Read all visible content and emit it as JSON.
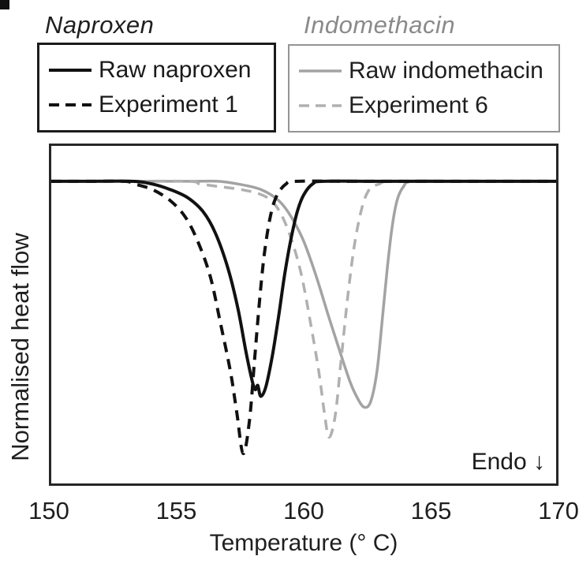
{
  "figure": {
    "group_titles": [
      {
        "label": "Naproxen",
        "color": "#1f1f1f"
      },
      {
        "label": "Indomethacin",
        "color": "#8a8a8a"
      }
    ]
  },
  "chart_data": {
    "type": "line",
    "title": "",
    "xlabel": "Temperature (° C)",
    "ylabel": "Normalised heat flow",
    "annotation": "Endo ↓",
    "xlim": [
      150,
      170
    ],
    "ylim": [
      -1.11,
      0.13
    ],
    "x_ticks": [
      150,
      155,
      160,
      165,
      170
    ],
    "y_ticks": [],
    "grid": false,
    "legend_position": "above-plot, two boxes",
    "baseline_value": 0,
    "series": [
      {
        "name": "Raw indomethacin",
        "group": "Indomethacin",
        "color": "#a3a3a3",
        "style": "solid",
        "width": 3.5,
        "points": [
          [
            150,
            0
          ],
          [
            153,
            0
          ],
          [
            155.5,
            0
          ],
          [
            156.6,
            0
          ],
          [
            157.4,
            -0.01
          ],
          [
            158.3,
            -0.03
          ],
          [
            159.0,
            -0.07
          ],
          [
            159.5,
            -0.13
          ],
          [
            160.0,
            -0.22
          ],
          [
            160.5,
            -0.35
          ],
          [
            161.0,
            -0.5
          ],
          [
            161.45,
            -0.63
          ],
          [
            161.85,
            -0.74
          ],
          [
            162.15,
            -0.8
          ],
          [
            162.4,
            -0.83
          ],
          [
            162.65,
            -0.81
          ],
          [
            162.9,
            -0.7
          ],
          [
            163.1,
            -0.52
          ],
          [
            163.3,
            -0.33
          ],
          [
            163.5,
            -0.17
          ],
          [
            163.7,
            -0.07
          ],
          [
            163.95,
            -0.02
          ],
          [
            164.3,
            0
          ],
          [
            166,
            0
          ],
          [
            168,
            0
          ],
          [
            170,
            0
          ]
        ]
      },
      {
        "name": "Experiment 6",
        "group": "Indomethacin",
        "color": "#b0b0b0",
        "style": "dashed",
        "width": 3.5,
        "points": [
          [
            150,
            0
          ],
          [
            152.5,
            0
          ],
          [
            155.4,
            0
          ],
          [
            155.9,
            -0.01
          ],
          [
            156.7,
            -0.02
          ],
          [
            157.5,
            -0.03
          ],
          [
            158.2,
            -0.045
          ],
          [
            158.7,
            -0.07
          ],
          [
            159.1,
            -0.12
          ],
          [
            159.5,
            -0.21
          ],
          [
            159.9,
            -0.34
          ],
          [
            160.25,
            -0.51
          ],
          [
            160.6,
            -0.7
          ],
          [
            160.82,
            -0.85
          ],
          [
            161.0,
            -0.94
          ],
          [
            161.25,
            -0.86
          ],
          [
            161.5,
            -0.64
          ],
          [
            161.75,
            -0.42
          ],
          [
            162.0,
            -0.24
          ],
          [
            162.3,
            -0.1
          ],
          [
            162.6,
            -0.03
          ],
          [
            163.0,
            -0.01
          ],
          [
            163.4,
            0
          ],
          [
            165.5,
            0
          ],
          [
            167.5,
            0
          ],
          [
            170,
            0
          ]
        ]
      },
      {
        "name": "Raw naproxen",
        "group": "Naproxen",
        "color": "#111111",
        "style": "solid",
        "width": 4,
        "points": [
          [
            150,
            0
          ],
          [
            151.5,
            0
          ],
          [
            153.2,
            0
          ],
          [
            154.0,
            -0.01
          ],
          [
            154.7,
            -0.03
          ],
          [
            155.4,
            -0.06
          ],
          [
            156.0,
            -0.11
          ],
          [
            156.5,
            -0.19
          ],
          [
            157.0,
            -0.32
          ],
          [
            157.4,
            -0.47
          ],
          [
            157.7,
            -0.62
          ],
          [
            157.95,
            -0.73
          ],
          [
            158.08,
            -0.765
          ],
          [
            158.18,
            -0.75
          ],
          [
            158.3,
            -0.79
          ],
          [
            158.5,
            -0.755
          ],
          [
            158.75,
            -0.645
          ],
          [
            159.0,
            -0.5
          ],
          [
            159.25,
            -0.34
          ],
          [
            159.5,
            -0.21
          ],
          [
            159.75,
            -0.11
          ],
          [
            160.0,
            -0.05
          ],
          [
            160.35,
            -0.01
          ],
          [
            160.8,
            0
          ],
          [
            163,
            0
          ],
          [
            166,
            0
          ],
          [
            170,
            0
          ]
        ]
      },
      {
        "name": "Experiment 1",
        "group": "Naproxen",
        "color": "#111111",
        "style": "dashed",
        "width": 4,
        "points": [
          [
            150,
            0
          ],
          [
            151.4,
            0
          ],
          [
            152.9,
            0
          ],
          [
            153.3,
            -0.01
          ],
          [
            154.0,
            -0.03
          ],
          [
            154.7,
            -0.07
          ],
          [
            155.3,
            -0.13
          ],
          [
            155.8,
            -0.22
          ],
          [
            156.3,
            -0.35
          ],
          [
            156.7,
            -0.52
          ],
          [
            157.1,
            -0.7
          ],
          [
            157.35,
            -0.85
          ],
          [
            157.6,
            -1.0
          ],
          [
            157.85,
            -0.88
          ],
          [
            158.05,
            -0.66
          ],
          [
            158.25,
            -0.44
          ],
          [
            158.45,
            -0.26
          ],
          [
            158.7,
            -0.12
          ],
          [
            158.95,
            -0.05
          ],
          [
            159.3,
            -0.01
          ],
          [
            159.7,
            0
          ],
          [
            162,
            0
          ],
          [
            164.5,
            0
          ],
          [
            167,
            0
          ],
          [
            170,
            0
          ]
        ]
      }
    ],
    "legend_boxes": [
      {
        "title": "Naproxen",
        "entries": [
          "Raw naproxen",
          "Experiment 1"
        ]
      },
      {
        "title": "Indomethacin",
        "entries": [
          "Raw indomethacin",
          "Experiment 6"
        ]
      }
    ]
  }
}
